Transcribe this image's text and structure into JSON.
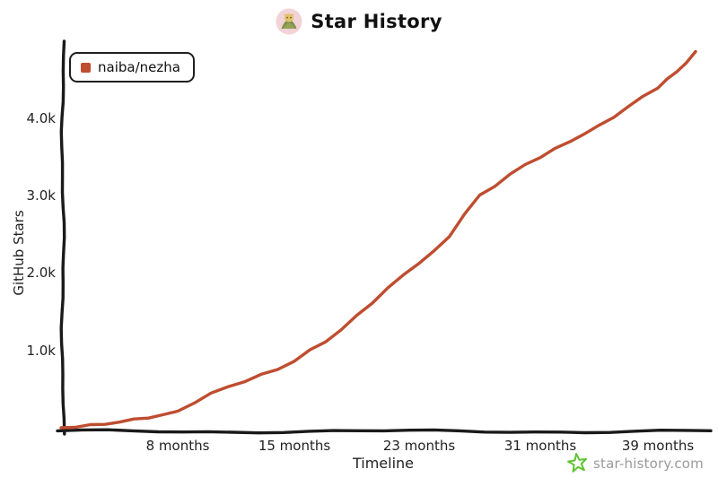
{
  "header": {
    "title": "Star History",
    "icon": "star-history-logo-icon"
  },
  "legend": {
    "items": [
      {
        "label": "naiba/nezha",
        "color": "#bf4d30",
        "marker": "square"
      }
    ]
  },
  "watermark": {
    "text": "star-history.com",
    "icon": "green-star-icon",
    "icon_color": "#5fc431",
    "text_color": "#9a9a9a"
  },
  "colors": {
    "series_line": "#bf4d30",
    "axis": "#1a1a1a",
    "tick_text": "#222222",
    "background": "#ffffff"
  },
  "chart_data": {
    "type": "line",
    "title": "Star History",
    "xlabel": "Timeline",
    "ylabel": "GitHub Stars",
    "x_unit": "months",
    "grid": false,
    "legend_position": "top-left",
    "xlim_months": [
      0,
      43
    ],
    "ylim": [
      0,
      5000
    ],
    "x_ticks": [
      {
        "month": 8,
        "label": "8 months"
      },
      {
        "month": 15,
        "label": "15 months"
      },
      {
        "month": 23,
        "label": "23 months"
      },
      {
        "month": 31,
        "label": "31 months"
      },
      {
        "month": 39,
        "label": "39 months"
      }
    ],
    "y_ticks": [
      {
        "value": 1000,
        "label": "1.0k"
      },
      {
        "value": 2000,
        "label": "2.0k"
      },
      {
        "value": 3000,
        "label": "3.0k"
      },
      {
        "value": 4000,
        "label": "4.0k"
      }
    ],
    "series": [
      {
        "name": "naiba/nezha",
        "color": "#bf4d30",
        "months": [
          0,
          1,
          2,
          3,
          4,
          5,
          6,
          7,
          8,
          9,
          10,
          11,
          12,
          13,
          14,
          15,
          16,
          17,
          18,
          19,
          20,
          21,
          22,
          23,
          24,
          25,
          26,
          27,
          28,
          29,
          30,
          31,
          32,
          33,
          34,
          35,
          36,
          37,
          38,
          39,
          40,
          41,
          42,
          43
        ],
        "stars": [
          0,
          15,
          30,
          50,
          75,
          105,
          135,
          165,
          210,
          330,
          440,
          530,
          600,
          680,
          760,
          860,
          1000,
          1120,
          1260,
          1450,
          1620,
          1800,
          1980,
          2130,
          2280,
          2480,
          2760,
          3000,
          3130,
          3270,
          3400,
          3500,
          3600,
          3700,
          3800,
          3900,
          4020,
          4150,
          4280,
          4400,
          4500,
          4600,
          4720,
          4850
        ]
      }
    ]
  }
}
